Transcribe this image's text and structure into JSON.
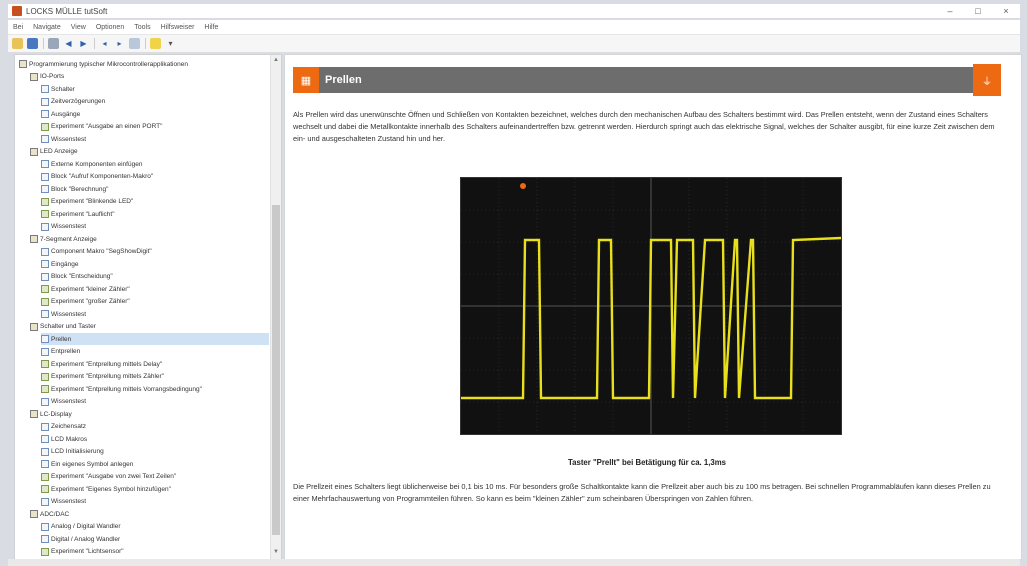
{
  "window": {
    "title": "LOCKS MÜLLE tutSoft",
    "controls": [
      "–",
      "□",
      "×"
    ]
  },
  "menu": [
    "Bei",
    "Navigate",
    "View",
    "Optionen",
    "Tools",
    "Hilfsweiser",
    "Hilfe"
  ],
  "toolbar": {
    "icons": [
      "open-icon",
      "save-icon",
      "print-icon",
      "back-icon",
      "forward-icon",
      "prev-icon",
      "next-icon",
      "home-icon",
      "star-icon",
      "dropdown-icon"
    ]
  },
  "tree": [
    {
      "label": "Programmierung typischer Mikrocontrollerapplikationen",
      "level": 0,
      "icon": "folder"
    },
    {
      "label": "IO-Ports",
      "level": 1,
      "icon": "folder"
    },
    {
      "label": "Schalter",
      "level": 2,
      "icon": "doc"
    },
    {
      "label": "Zeitverzögerungen",
      "level": 2,
      "icon": "doc"
    },
    {
      "label": "Ausgänge",
      "level": 2,
      "icon": "doc"
    },
    {
      "label": "Experiment \"Ausgabe an einen PORT\"",
      "level": 2,
      "icon": "exp"
    },
    {
      "label": "Wissenstest",
      "level": 2,
      "icon": "doc"
    },
    {
      "label": "LED Anzeige",
      "level": 1,
      "icon": "folder"
    },
    {
      "label": "Externe Komponenten einfügen",
      "level": 2,
      "icon": "doc"
    },
    {
      "label": "Block \"Aufruf Komponenten-Makro\"",
      "level": 2,
      "icon": "doc"
    },
    {
      "label": "Block \"Berechnung\"",
      "level": 2,
      "icon": "doc"
    },
    {
      "label": "Experiment \"Blinkende LED\"",
      "level": 2,
      "icon": "exp"
    },
    {
      "label": "Experiment \"Lauflicht\"",
      "level": 2,
      "icon": "exp"
    },
    {
      "label": "Wissenstest",
      "level": 2,
      "icon": "doc"
    },
    {
      "label": "7-Segment Anzeige",
      "level": 1,
      "icon": "folder"
    },
    {
      "label": "Component Makro \"SegShowDigit\"",
      "level": 2,
      "icon": "doc"
    },
    {
      "label": "Eingänge",
      "level": 2,
      "icon": "doc"
    },
    {
      "label": "Block \"Entscheidung\"",
      "level": 2,
      "icon": "doc"
    },
    {
      "label": "Experiment \"kleiner Zähler\"",
      "level": 2,
      "icon": "exp"
    },
    {
      "label": "Experiment \"großer Zähler\"",
      "level": 2,
      "icon": "exp"
    },
    {
      "label": "Wissenstest",
      "level": 2,
      "icon": "doc"
    },
    {
      "label": "Schalter und Taster",
      "level": 1,
      "icon": "folder"
    },
    {
      "label": "Prellen",
      "level": 2,
      "icon": "doc",
      "selected": true
    },
    {
      "label": "Entprellen",
      "level": 2,
      "icon": "doc"
    },
    {
      "label": "Experiment \"Entprellung mittels Delay\"",
      "level": 2,
      "icon": "exp"
    },
    {
      "label": "Experiment \"Entprellung mittels Zähler\"",
      "level": 2,
      "icon": "exp"
    },
    {
      "label": "Experiment \"Entprellung mittels Vorrangsbedingung\"",
      "level": 2,
      "icon": "exp"
    },
    {
      "label": "Wissenstest",
      "level": 2,
      "icon": "doc"
    },
    {
      "label": "LC-Display",
      "level": 1,
      "icon": "folder"
    },
    {
      "label": "Zeichensatz",
      "level": 2,
      "icon": "doc"
    },
    {
      "label": "LCD Makros",
      "level": 2,
      "icon": "doc"
    },
    {
      "label": "LCD Initialisierung",
      "level": 2,
      "icon": "doc"
    },
    {
      "label": "Ein eigenes Symbol anlegen",
      "level": 2,
      "icon": "doc"
    },
    {
      "label": "Experiment \"Ausgabe von zwei Text Zeilen\"",
      "level": 2,
      "icon": "exp"
    },
    {
      "label": "Experiment \"Eigenes Symbol hinzufügen\"",
      "level": 2,
      "icon": "exp"
    },
    {
      "label": "Wissenstest",
      "level": 2,
      "icon": "doc"
    },
    {
      "label": "ADC/DAC",
      "level": 1,
      "icon": "folder"
    },
    {
      "label": "Analog / Digital Wandler",
      "level": 2,
      "icon": "doc"
    },
    {
      "label": "Digital / Analog Wandler",
      "level": 2,
      "icon": "doc"
    },
    {
      "label": "Experiment \"Lichtsensor\"",
      "level": 2,
      "icon": "exp"
    }
  ],
  "content": {
    "title": "Prellen",
    "paragraph1": "Als Prellen wird das unerwünschte Öffnen und Schließen von Kontakten bezeichnet, welches durch den mechanischen Aufbau des Schalters bestimmt wird. Das Prellen entsteht, wenn der Zustand eines Schalters wechselt und dabei die Metallkontakte innerhalb des Schalters aufeinandertreffen bzw. getrennt werden. Hierdurch springt auch das elektrische Signal, welches der Schalter ausgibt, für eine kurze Zeit zwischen dem ein- und ausgeschalteten Zustand hin und her.",
    "caption": "Taster \"Prellt\" bei Betätigung für ca. 1,3ms",
    "paragraph2": "Die Prellzeit eines Schalters liegt üblicherweise bei 0,1 bis 10 ms. Für besonders große Schaltkontakte kann die Prellzeit aber auch bis zu 100 ms betragen. Bei schnellen Programmabläufen kann dieses Prellen zu einer Mehrfachauswertung von Programmteilen führen. So kann es beim \"kleinen Zähler\" zum scheinbaren Überspringen von Zahlen führen.",
    "accent": "#ed6a12",
    "header_bg": "#6d6d6d",
    "trace_color": "#e8e01a"
  }
}
